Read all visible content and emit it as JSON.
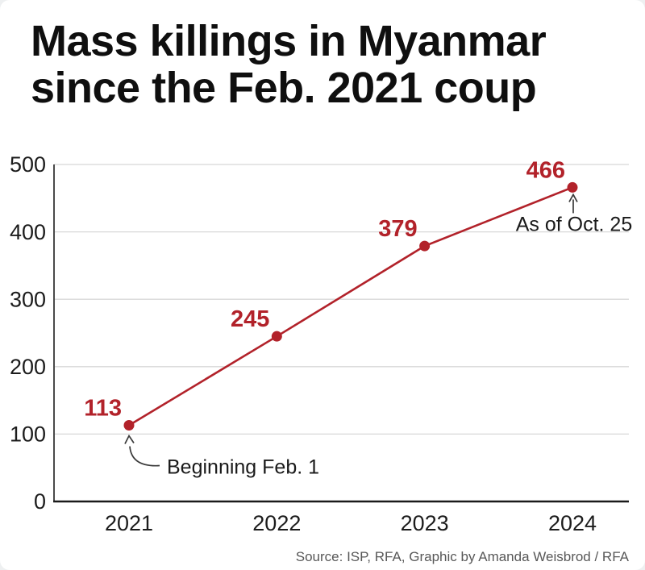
{
  "title": {
    "line1": "Mass killings in Myanmar",
    "line2": "since the Feb. 2021 coup"
  },
  "source": "Source: ISP, RFA, Graphic by Amanda Weisbrod / RFA",
  "colors": {
    "line": "#b2222a",
    "point": "#b2222a",
    "value_label": "#b2222a",
    "grid": "#d8d8d8",
    "x_axis": "#1a1a1a",
    "y_axis": "#4a4a4a",
    "tick_text": "#1c1c1c",
    "annotation_text": "#1a1a1a",
    "arrow": "#3a3a3a",
    "background": "#ffffff"
  },
  "chart_data": {
    "type": "line",
    "title": "Mass killings in Myanmar since the Feb. 2021 coup",
    "categories": [
      "2021",
      "2022",
      "2023",
      "2024"
    ],
    "values": [
      113,
      245,
      379,
      466
    ],
    "point_labels": [
      "113",
      "245",
      "379",
      "466"
    ],
    "xlabel": "",
    "ylabel": "",
    "ylim": [
      0,
      500
    ],
    "yticks": [
      0,
      100,
      200,
      300,
      400,
      500
    ],
    "grid": true,
    "legend": false,
    "annotations": [
      {
        "label": "Beginning Feb. 1",
        "target_category": "2021",
        "arrow": "curved-up"
      },
      {
        "label": "As of Oct. 25",
        "target_category": "2024",
        "arrow": "straight-up"
      }
    ]
  }
}
